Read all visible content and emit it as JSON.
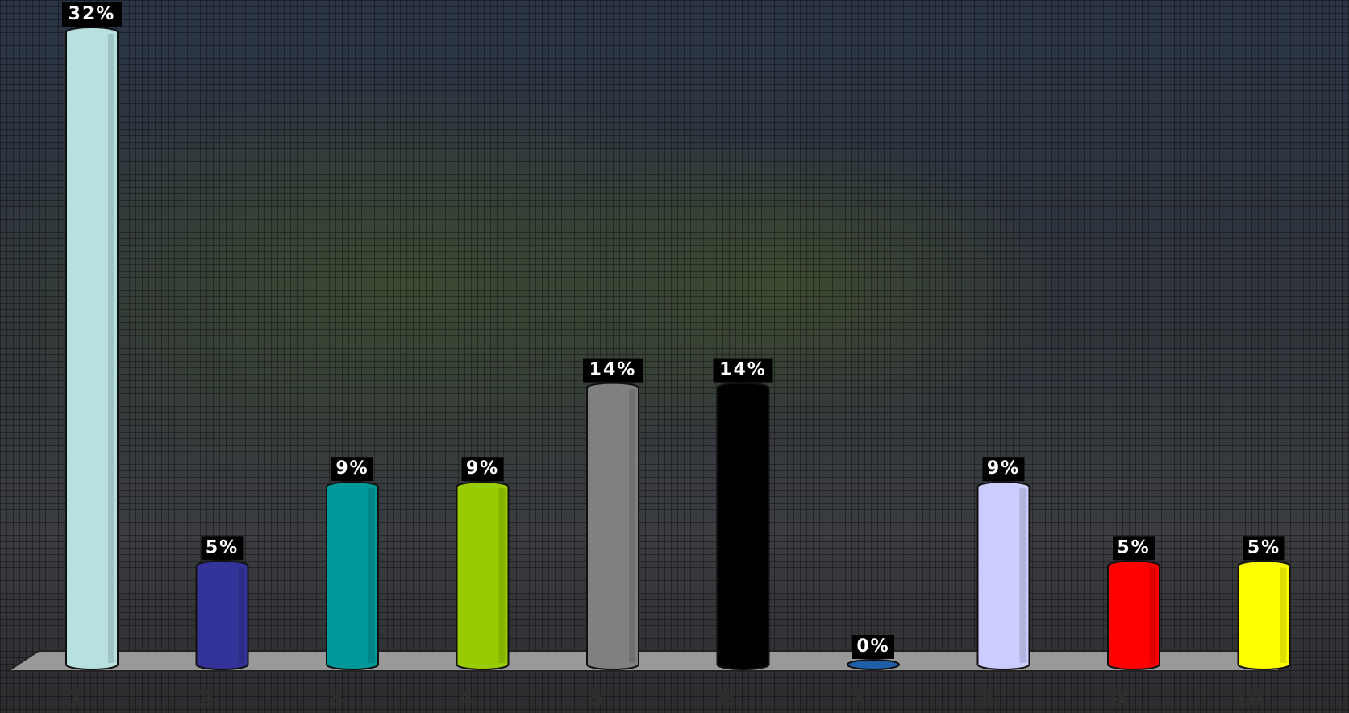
{
  "chart_data": {
    "type": "bar",
    "categories": [
      "1",
      "2",
      "3",
      "4",
      "5",
      "6",
      "7",
      "8",
      "9",
      "10"
    ],
    "values": [
      32,
      5,
      9,
      9,
      14,
      14,
      0,
      9,
      5,
      5
    ],
    "value_labels": [
      "32%",
      "5%",
      "9%",
      "9%",
      "14%",
      "14%",
      "0%",
      "9%",
      "5%",
      "5%"
    ],
    "colors": [
      "#b8e0e0",
      "#333399",
      "#009999",
      "#99cc00",
      "#808080",
      "#000000",
      "#1f5fa8",
      "#ccccff",
      "#ff0000",
      "#ffff00"
    ]
  }
}
